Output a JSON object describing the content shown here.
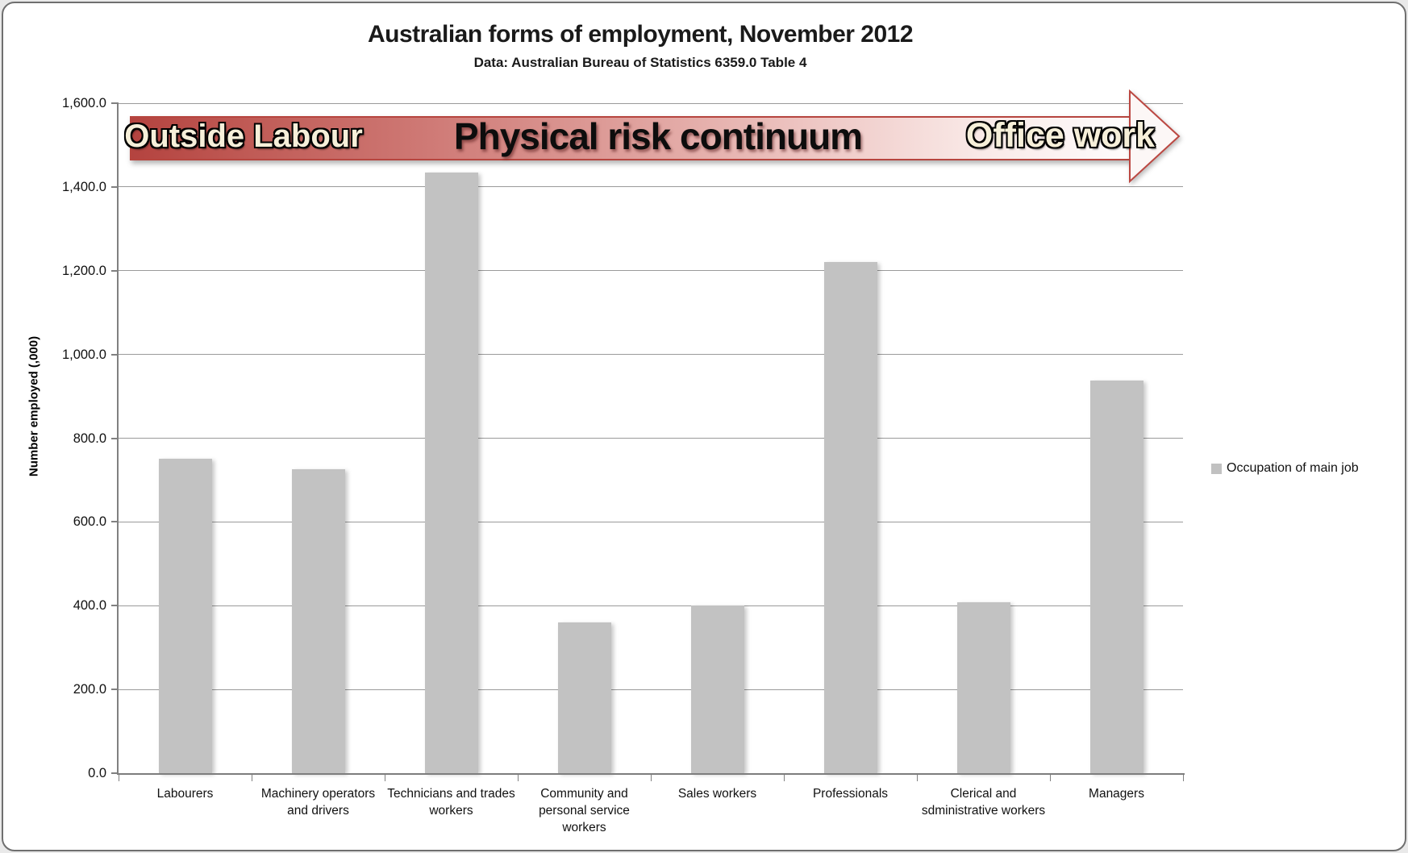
{
  "header": {
    "title": "Australian forms of employment, November 2012",
    "subtitle": "Data: Australian Bureau of Statistics 6359.0 Table 4"
  },
  "banner": {
    "left_label": "Outside Labour",
    "center_label": "Physical risk continuum",
    "right_label": "Office work",
    "gradient_start_color": "#b4433f",
    "gradient_end_color": "#fefcfc",
    "outline_color": "#b6453f"
  },
  "legend": {
    "label": "Occupation of main job",
    "marker_color": "#c1c1c1"
  },
  "chart_data": {
    "type": "bar",
    "title": "Australian forms of employment, November 2012",
    "subtitle": "Data: Australian Bureau of Statistics 6359.0 Table 4",
    "xlabel": "",
    "ylabel": "Number employed (,000)",
    "categories": [
      "Labourers",
      "Machinery operators and drivers",
      "Technicians and trades workers",
      "Community and personal service workers",
      "Sales workers",
      "Professionals",
      "Clerical and sdministrative workers",
      "Managers"
    ],
    "series": [
      {
        "name": "Occupation of main job",
        "values": [
          751,
          726,
          1434,
          361,
          401,
          1221,
          409,
          937
        ]
      }
    ],
    "ylim": [
      0,
      1600
    ],
    "ytick_step": 200,
    "ytick_labels": [
      "0.0",
      "200.0",
      "400.0",
      "600.0",
      "800.0",
      "1,000.0",
      "1,200.0",
      "1,400.0",
      "1,600.0"
    ],
    "grid": true,
    "legend_position": "right",
    "bar_color": "#c2c2c2",
    "annotations": [
      "Outside Labour",
      "Physical risk continuum",
      "Office work"
    ]
  }
}
